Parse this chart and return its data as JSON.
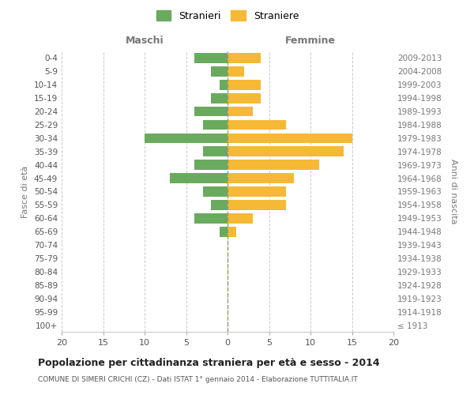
{
  "age_groups": [
    "100+",
    "95-99",
    "90-94",
    "85-89",
    "80-84",
    "75-79",
    "70-74",
    "65-69",
    "60-64",
    "55-59",
    "50-54",
    "45-49",
    "40-44",
    "35-39",
    "30-34",
    "25-29",
    "20-24",
    "15-19",
    "10-14",
    "5-9",
    "0-4"
  ],
  "birth_years": [
    "≤ 1913",
    "1914-1918",
    "1919-1923",
    "1924-1928",
    "1929-1933",
    "1934-1938",
    "1939-1943",
    "1944-1948",
    "1949-1953",
    "1954-1958",
    "1959-1963",
    "1964-1968",
    "1969-1973",
    "1974-1978",
    "1979-1983",
    "1984-1988",
    "1989-1993",
    "1994-1998",
    "1999-2003",
    "2004-2008",
    "2009-2013"
  ],
  "males": [
    0,
    0,
    0,
    0,
    0,
    0,
    0,
    1,
    4,
    2,
    3,
    7,
    4,
    3,
    10,
    3,
    4,
    2,
    1,
    2,
    4
  ],
  "females": [
    0,
    0,
    0,
    0,
    0,
    0,
    0,
    1,
    3,
    7,
    7,
    8,
    11,
    14,
    15,
    7,
    3,
    4,
    4,
    2,
    4
  ],
  "male_color": "#6aaa5e",
  "female_color": "#f5b935",
  "title": "Popolazione per cittadinanza straniera per età e sesso - 2014",
  "subtitle": "COMUNE DI SIMERI CRICHI (CZ) - Dati ISTAT 1° gennaio 2014 - Elaborazione TUTTITALIA.IT",
  "left_label": "Maschi",
  "right_label": "Femmine",
  "ylabel_left": "Fasce di età",
  "ylabel_right": "Anni di nascita",
  "legend_males": "Stranieri",
  "legend_females": "Straniere",
  "xlim": 20,
  "background_color": "#ffffff",
  "grid_color": "#cccccc"
}
